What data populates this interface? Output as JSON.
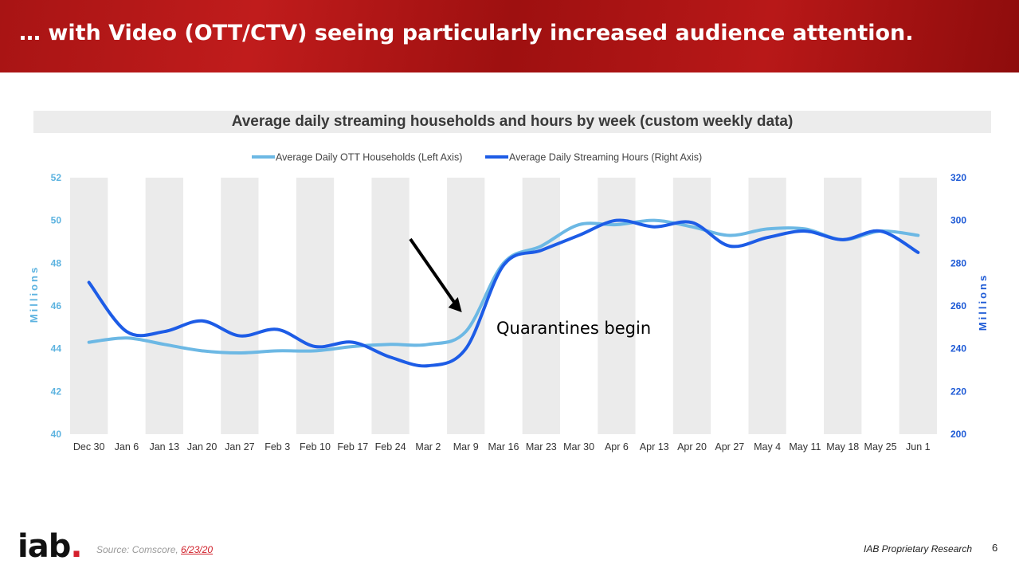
{
  "slide": {
    "title": "… with Video (OTT/CTV) seeing particularly increased audience attention.",
    "page_number": "6",
    "source_prefix": "Source: Comscore, ",
    "source_date": "6/23/20",
    "proprietary": "IAB Proprietary Research",
    "logo_text": "iab",
    "logo_dot": "."
  },
  "colors": {
    "banner": "#b01818",
    "ott_line": "#6cb8e4",
    "hours_line": "#1d5ce6",
    "left_axis": "#5db3e0",
    "right_axis": "#1f5bd6",
    "band": "#ebebeb",
    "arrow": "#000000"
  },
  "chart_data": {
    "type": "line",
    "title": "Average daily streaming households and hours by week (custom weekly data)",
    "categories": [
      "Dec 30",
      "Jan 6",
      "Jan 13",
      "Jan 20",
      "Jan 27",
      "Feb 3",
      "Feb 10",
      "Feb 17",
      "Feb 24",
      "Mar 2",
      "Mar 9",
      "Mar 16",
      "Mar 23",
      "Mar 30",
      "Apr 6",
      "Apr 13",
      "Apr 20",
      "Apr 27",
      "May 4",
      "May 11",
      "May 18",
      "May 25",
      "Jun 1"
    ],
    "series": [
      {
        "name": "Average Daily OTT Households (Left Axis)",
        "axis": "left",
        "values": [
          44.3,
          44.5,
          44.2,
          43.9,
          43.8,
          43.9,
          43.9,
          44.1,
          44.2,
          44.2,
          44.8,
          48.0,
          48.8,
          49.8,
          49.8,
          50.0,
          49.7,
          49.3,
          49.6,
          49.6,
          49.1,
          49.5,
          49.3
        ]
      },
      {
        "name": "Average Daily Streaming Hours (Right Axis)",
        "axis": "right",
        "values": [
          271,
          248,
          248,
          253,
          246,
          249,
          241,
          243,
          236,
          232,
          240,
          279,
          286,
          293,
          300,
          297,
          299,
          288,
          292,
          295,
          291,
          295,
          285
        ]
      }
    ],
    "left_axis": {
      "label": "Millions",
      "min": 40,
      "max": 52,
      "ticks": [
        40,
        42,
        44,
        46,
        48,
        50,
        52
      ]
    },
    "right_axis": {
      "label": "Millions",
      "min": 200,
      "max": 320,
      "ticks": [
        200,
        220,
        240,
        260,
        280,
        300,
        320
      ]
    },
    "legend_position": "top",
    "annotation": {
      "text": "Quarantines begin",
      "category": "Mar 9"
    }
  }
}
